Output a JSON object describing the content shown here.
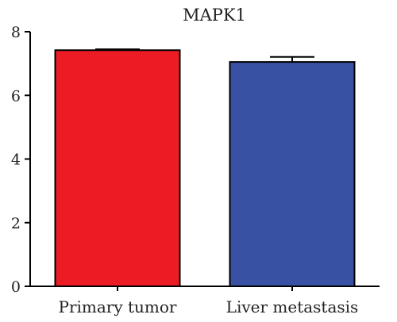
{
  "chart_data": {
    "type": "bar",
    "title": "MAPK1",
    "xlabel": "",
    "ylabel": "",
    "categories": [
      "Primary tumor",
      "Liver metastasis"
    ],
    "values": [
      7.42,
      7.05
    ],
    "errors": [
      0.03,
      0.16
    ],
    "colors": [
      "#ec1c24",
      "#3851a3"
    ],
    "ylim": [
      0,
      8
    ],
    "yticks": [
      0,
      2,
      4,
      6,
      8
    ],
    "grid": false,
    "legend": "none"
  }
}
